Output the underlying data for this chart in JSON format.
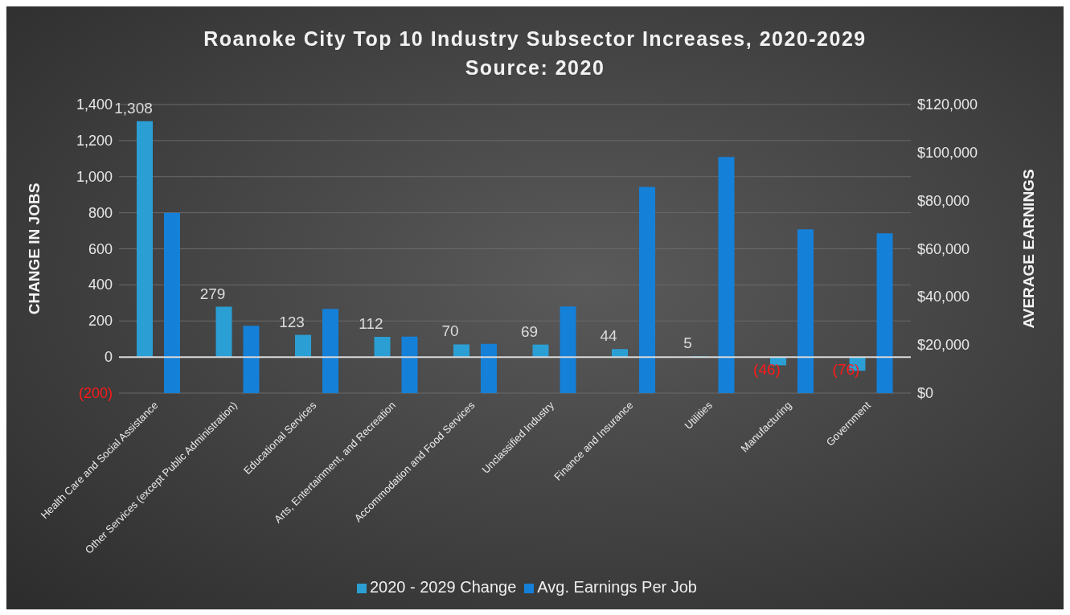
{
  "chart_data": {
    "type": "bar",
    "title": "Roanoke City Top 10 Industry Subsector Increases, 2020-2029",
    "subtitle": "Source: 2020",
    "ylabel": "CHANGE IN JOBS",
    "y2label": "AVERAGE EARNINGS",
    "categories": [
      "Health Care and Social Assistance",
      "Other Services (except Public Administration)",
      "Educational Services",
      "Arts, Entertainment, and Recreation",
      "Accommodation and Food Services",
      "Unclassified Industry",
      "Finance and Insurance",
      "Utilities",
      "Manufacturing",
      "Government"
    ],
    "series": [
      {
        "name": "2020 - 2029 Change",
        "color": "#2b9fd3",
        "values": [
          1308,
          279,
          123,
          112,
          70,
          69,
          44,
          5,
          -46,
          -76
        ],
        "value_labels": [
          "1,308",
          "279",
          "123",
          "112",
          "70",
          "69",
          "44",
          "5",
          "(46)",
          "(76)"
        ]
      },
      {
        "name": "Avg. Earnings Per Job",
        "color": "#1580d8",
        "axis": "y2",
        "values": [
          75000,
          28000,
          35000,
          23500,
          20500,
          36000,
          85700,
          98200,
          68100,
          66400
        ]
      }
    ],
    "ylim": [
      -200,
      1400
    ],
    "yticks": [
      {
        "value": -200,
        "label": "(200)"
      },
      {
        "value": 0,
        "label": "0"
      },
      {
        "value": 200,
        "label": "200"
      },
      {
        "value": 400,
        "label": "400"
      },
      {
        "value": 600,
        "label": "600"
      },
      {
        "value": 800,
        "label": "800"
      },
      {
        "value": 1000,
        "label": "1,000"
      },
      {
        "value": 1200,
        "label": "1,200"
      },
      {
        "value": 1400,
        "label": "1,400"
      }
    ],
    "y2lim": [
      0,
      120000
    ],
    "y2ticks": [
      {
        "value": 0,
        "label": "$0"
      },
      {
        "value": 20000,
        "label": "$20,000"
      },
      {
        "value": 40000,
        "label": "$40,000"
      },
      {
        "value": 60000,
        "label": "$60,000"
      },
      {
        "value": 80000,
        "label": "$80,000"
      },
      {
        "value": 100000,
        "label": "$100,000"
      },
      {
        "value": 120000,
        "label": "$120,000"
      }
    ],
    "grid": "y",
    "legend": "bottom"
  }
}
